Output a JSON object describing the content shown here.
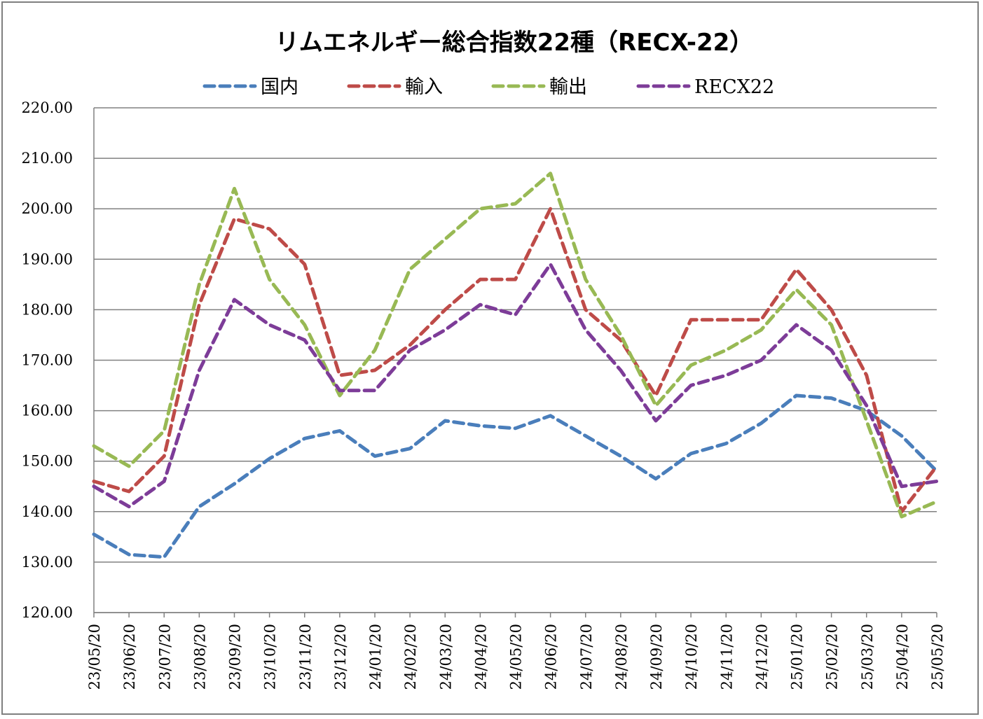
{
  "chart_data": {
    "type": "line",
    "title": "リムエネルギー総合指数22種（RECX-22）",
    "xlabel": "",
    "ylabel": "",
    "ylim": [
      120,
      220
    ],
    "yticks": [
      "120.00",
      "130.00",
      "140.00",
      "150.00",
      "160.00",
      "170.00",
      "180.00",
      "190.00",
      "200.00",
      "210.00",
      "220.00"
    ],
    "categories": [
      "23/05/20",
      "23/06/20",
      "23/07/20",
      "23/08/20",
      "23/09/20",
      "23/10/20",
      "23/11/20",
      "23/12/20",
      "24/01/20",
      "24/02/20",
      "24/03/20",
      "24/04/20",
      "24/05/20",
      "24/06/20",
      "24/07/20",
      "24/08/20",
      "24/09/20",
      "24/10/20",
      "24/11/20",
      "24/12/20",
      "25/01/20",
      "25/02/20",
      "25/03/20",
      "25/04/20",
      "25/05/20"
    ],
    "grid": true,
    "legend_position": "top",
    "series": [
      {
        "name": "国内",
        "color": "#4a7ebb",
        "values": [
          135.5,
          131.5,
          131.0,
          141.0,
          145.5,
          150.5,
          154.5,
          156.0,
          151.0,
          152.5,
          158.0,
          157.0,
          156.5,
          159.0,
          155.0,
          151.0,
          146.5,
          151.5,
          153.5,
          157.5,
          163.0,
          162.5,
          160.0,
          155.0,
          148.0
        ]
      },
      {
        "name": "輸入",
        "color": "#be4b48",
        "values": [
          146.0,
          144.0,
          151.0,
          181.0,
          198.0,
          196.0,
          189.0,
          167.0,
          168.0,
          173.0,
          180.0,
          186.0,
          186.0,
          200.0,
          180.0,
          174.0,
          163.0,
          178.0,
          178.0,
          178.0,
          188.0,
          180.0,
          167.0,
          140.0,
          149.0
        ]
      },
      {
        "name": "輸出",
        "color": "#98b954",
        "values": [
          153.0,
          149.0,
          156.0,
          185.0,
          204.0,
          186.0,
          177.0,
          163.0,
          172.0,
          188.0,
          194.0,
          200.0,
          201.0,
          207.0,
          186.0,
          175.0,
          161.0,
          169.0,
          172.0,
          176.0,
          184.0,
          177.0,
          158.0,
          139.0,
          142.0
        ]
      },
      {
        "name": "RECX22",
        "color": "#7d3c98",
        "values": [
          145.0,
          141.0,
          146.0,
          168.0,
          182.0,
          177.0,
          174.0,
          164.0,
          164.0,
          172.0,
          176.0,
          181.0,
          179.0,
          189.0,
          176.0,
          168.0,
          158.0,
          165.0,
          167.0,
          170.0,
          177.0,
          172.0,
          161.0,
          145.0,
          146.0
        ]
      }
    ]
  }
}
